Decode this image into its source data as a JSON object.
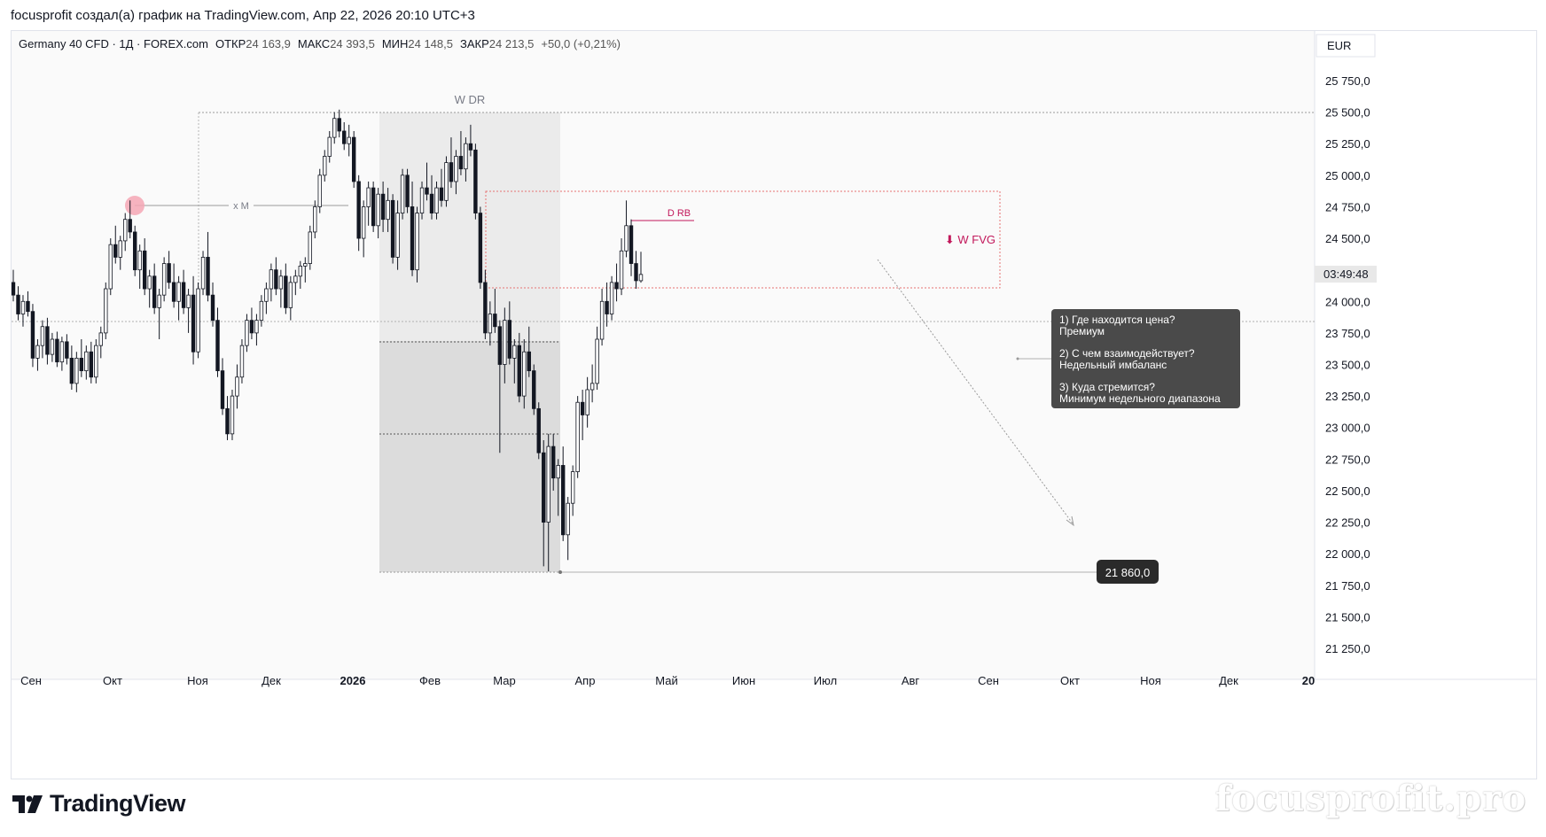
{
  "header": {
    "caption": "focusprofit создал(а) график на TradingView.com, Апр 22, 2026 20:10 UTC+3"
  },
  "legend": {
    "symbol": "Germany 40 CFD · 1Д · FOREX.com",
    "open_label": "ОТКР",
    "open_value": "24 163,9",
    "high_label": "МАКС",
    "high_value": "24 393,5",
    "low_label": "МИН",
    "low_value": "24 148,5",
    "close_label": "ЗАКР",
    "close_value": "24 213,5",
    "change": "+50,0 (+0,21%)"
  },
  "currency": "EUR",
  "countdown": "03:49:48",
  "price_marker": "21 860,0",
  "annotations": {
    "wdr": "W DR",
    "xm": "x M",
    "drb": "D RB",
    "wfvg": "⬇ W FVG"
  },
  "note": {
    "lines": [
      "1) Где находится цена?",
      "Премиум",
      "",
      "2) С чем взаимодействует?",
      "Недельный имбаланс",
      "",
      "3) Куда стремится?",
      "Минимум недельного диапазона"
    ]
  },
  "brand": "TradingView",
  "watermark": "focusprofit.pro",
  "colors": {
    "bull": "#131722",
    "bear": "#131722",
    "accent_red": "#c2185b",
    "fvg_red": "#e57373",
    "note_bg": "#4a4a4a",
    "marker_bg": "#2a2a2a"
  },
  "chart_data": {
    "type": "candlestick",
    "title": "",
    "y_axis": {
      "ticks": [
        "25 750,0",
        "25 500,0",
        "25 250,0",
        "25 000,0",
        "24 750,0",
        "24 500,0",
        "24 250,0",
        "24 000,0",
        "23 750,0",
        "23 500,0",
        "23 250,0",
        "23 000,0",
        "22 750,0",
        "22 500,0",
        "22 250,0",
        "22 000,0",
        "21 750,0",
        "21 500,0",
        "21 250,0"
      ],
      "tick_values": [
        25750,
        25500,
        25250,
        25000,
        24750,
        24500,
        24250,
        24000,
        23750,
        23500,
        23250,
        23000,
        22750,
        22500,
        22250,
        22000,
        21750,
        21500,
        21250
      ],
      "range": [
        21100,
        25950
      ]
    },
    "x_axis": {
      "labels": [
        "Сен",
        "Окт",
        "Ноя",
        "Дек",
        "2026",
        "Фев",
        "Мар",
        "Апр",
        "Май",
        "Июн",
        "Июл",
        "Авг",
        "Сен",
        "Окт",
        "Ноя",
        "Дек",
        "20"
      ],
      "bold": [
        false,
        false,
        false,
        false,
        true,
        false,
        false,
        false,
        false,
        false,
        false,
        false,
        false,
        false,
        false,
        false,
        true
      ],
      "range": [
        "2025-08-27",
        "2026-12-31"
      ]
    },
    "last_close": 24213.5,
    "levels": {
      "wdr_high": 25500,
      "wdr_low": 21860,
      "wdr_mid": 22950,
      "wdr_q": 23680,
      "current_price_line": 23830,
      "xm_level": 24700,
      "drb_level": 24630,
      "fvg_top": 24870,
      "fvg_bottom": 24100
    },
    "candles": [
      {
        "o": 24150,
        "h": 24250,
        "l": 24000,
        "c": 24050
      },
      {
        "o": 24050,
        "h": 24120,
        "l": 23850,
        "c": 23900
      },
      {
        "o": 23900,
        "h": 24050,
        "l": 23800,
        "c": 24000
      },
      {
        "o": 24000,
        "h": 24080,
        "l": 23880,
        "c": 23920
      },
      {
        "o": 23920,
        "h": 23980,
        "l": 23480,
        "c": 23550
      },
      {
        "o": 23550,
        "h": 23700,
        "l": 23450,
        "c": 23650
      },
      {
        "o": 23650,
        "h": 23850,
        "l": 23550,
        "c": 23800
      },
      {
        "o": 23800,
        "h": 23870,
        "l": 23500,
        "c": 23580
      },
      {
        "o": 23580,
        "h": 23750,
        "l": 23520,
        "c": 23700
      },
      {
        "o": 23700,
        "h": 23760,
        "l": 23480,
        "c": 23520
      },
      {
        "o": 23520,
        "h": 23720,
        "l": 23450,
        "c": 23680
      },
      {
        "o": 23680,
        "h": 23740,
        "l": 23500,
        "c": 23550
      },
      {
        "o": 23550,
        "h": 23650,
        "l": 23300,
        "c": 23350
      },
      {
        "o": 23350,
        "h": 23600,
        "l": 23280,
        "c": 23550
      },
      {
        "o": 23550,
        "h": 23700,
        "l": 23400,
        "c": 23450
      },
      {
        "o": 23450,
        "h": 23650,
        "l": 23380,
        "c": 23600
      },
      {
        "o": 23600,
        "h": 23680,
        "l": 23350,
        "c": 23400
      },
      {
        "o": 23400,
        "h": 23700,
        "l": 23350,
        "c": 23650
      },
      {
        "o": 23650,
        "h": 23800,
        "l": 23550,
        "c": 23750
      },
      {
        "o": 23750,
        "h": 24150,
        "l": 23700,
        "c": 24100
      },
      {
        "o": 24100,
        "h": 24500,
        "l": 24050,
        "c": 24450
      },
      {
        "o": 24450,
        "h": 24600,
        "l": 24300,
        "c": 24350
      },
      {
        "o": 24350,
        "h": 24520,
        "l": 24250,
        "c": 24480
      },
      {
        "o": 24480,
        "h": 24700,
        "l": 24400,
        "c": 24650
      },
      {
        "o": 24650,
        "h": 24800,
        "l": 24500,
        "c": 24550
      },
      {
        "o": 24550,
        "h": 24600,
        "l": 24200,
        "c": 24250
      },
      {
        "o": 24250,
        "h": 24450,
        "l": 24100,
        "c": 24400
      },
      {
        "o": 24400,
        "h": 24500,
        "l": 24050,
        "c": 24100
      },
      {
        "o": 24100,
        "h": 24250,
        "l": 23950,
        "c": 24200
      },
      {
        "o": 24200,
        "h": 24300,
        "l": 23900,
        "c": 23950
      },
      {
        "o": 23950,
        "h": 24100,
        "l": 23700,
        "c": 24050
      },
      {
        "o": 24050,
        "h": 24350,
        "l": 24000,
        "c": 24300
      },
      {
        "o": 24300,
        "h": 24400,
        "l": 24100,
        "c": 24150
      },
      {
        "o": 24150,
        "h": 24300,
        "l": 23950,
        "c": 24000
      },
      {
        "o": 24000,
        "h": 24200,
        "l": 23850,
        "c": 24150
      },
      {
        "o": 24150,
        "h": 24250,
        "l": 23900,
        "c": 23950
      },
      {
        "o": 23950,
        "h": 24100,
        "l": 23750,
        "c": 24050
      },
      {
        "o": 24050,
        "h": 24200,
        "l": 23500,
        "c": 23600
      },
      {
        "o": 23600,
        "h": 24150,
        "l": 23550,
        "c": 24100
      },
      {
        "o": 24100,
        "h": 24400,
        "l": 24050,
        "c": 24350
      },
      {
        "o": 24350,
        "h": 24550,
        "l": 24000,
        "c": 24050
      },
      {
        "o": 24050,
        "h": 24150,
        "l": 23800,
        "c": 23850
      },
      {
        "o": 23850,
        "h": 23950,
        "l": 23400,
        "c": 23450
      },
      {
        "o": 23450,
        "h": 23550,
        "l": 23100,
        "c": 23150
      },
      {
        "o": 23150,
        "h": 23250,
        "l": 22900,
        "c": 22950
      },
      {
        "o": 22950,
        "h": 23300,
        "l": 22900,
        "c": 23250
      },
      {
        "o": 23250,
        "h": 23500,
        "l": 23150,
        "c": 23400
      },
      {
        "o": 23400,
        "h": 23700,
        "l": 23350,
        "c": 23650
      },
      {
        "o": 23650,
        "h": 23900,
        "l": 23600,
        "c": 23850
      },
      {
        "o": 23850,
        "h": 23950,
        "l": 23700,
        "c": 23750
      },
      {
        "o": 23750,
        "h": 23900,
        "l": 23650,
        "c": 23850
      },
      {
        "o": 23850,
        "h": 24050,
        "l": 23800,
        "c": 24000
      },
      {
        "o": 24000,
        "h": 24150,
        "l": 23900,
        "c": 24100
      },
      {
        "o": 24100,
        "h": 24300,
        "l": 24000,
        "c": 24250
      },
      {
        "o": 24250,
        "h": 24350,
        "l": 24050,
        "c": 24100
      },
      {
        "o": 24100,
        "h": 24250,
        "l": 23950,
        "c": 24200
      },
      {
        "o": 24200,
        "h": 24300,
        "l": 23900,
        "c": 23950
      },
      {
        "o": 23950,
        "h": 24200,
        "l": 23850,
        "c": 24150
      },
      {
        "o": 24150,
        "h": 24250,
        "l": 24050,
        "c": 24200
      },
      {
        "o": 24200,
        "h": 24320,
        "l": 24100,
        "c": 24280
      },
      {
        "o": 24280,
        "h": 24350,
        "l": 24150,
        "c": 24300
      },
      {
        "o": 24300,
        "h": 24600,
        "l": 24250,
        "c": 24550
      },
      {
        "o": 24550,
        "h": 24800,
        "l": 24500,
        "c": 24750
      },
      {
        "o": 24750,
        "h": 25050,
        "l": 24700,
        "c": 25000
      },
      {
        "o": 25000,
        "h": 25200,
        "l": 24950,
        "c": 25150
      },
      {
        "o": 25150,
        "h": 25350,
        "l": 25100,
        "c": 25300
      },
      {
        "o": 25300,
        "h": 25500,
        "l": 25250,
        "c": 25450
      },
      {
        "o": 25450,
        "h": 25520,
        "l": 25300,
        "c": 25350
      },
      {
        "o": 25350,
        "h": 25420,
        "l": 25200,
        "c": 25250
      },
      {
        "o": 25250,
        "h": 25400,
        "l": 25150,
        "c": 25300
      },
      {
        "o": 25300,
        "h": 25350,
        "l": 24900,
        "c": 24950
      },
      {
        "o": 24950,
        "h": 25000,
        "l": 24400,
        "c": 24500
      },
      {
        "o": 24500,
        "h": 24800,
        "l": 24350,
        "c": 24750
      },
      {
        "o": 24750,
        "h": 24950,
        "l": 24600,
        "c": 24900
      },
      {
        "o": 24900,
        "h": 24950,
        "l": 24550,
        "c": 24600
      },
      {
        "o": 24600,
        "h": 24900,
        "l": 24500,
        "c": 24850
      },
      {
        "o": 24850,
        "h": 24950,
        "l": 24550,
        "c": 24650
      },
      {
        "o": 24650,
        "h": 24900,
        "l": 24550,
        "c": 24800
      },
      {
        "o": 24800,
        "h": 24850,
        "l": 24300,
        "c": 24350
      },
      {
        "o": 24350,
        "h": 24800,
        "l": 24250,
        "c": 24700
      },
      {
        "o": 24700,
        "h": 25050,
        "l": 24650,
        "c": 25000
      },
      {
        "o": 25000,
        "h": 25050,
        "l": 24700,
        "c": 24750
      },
      {
        "o": 24750,
        "h": 24950,
        "l": 24200,
        "c": 24250
      },
      {
        "o": 24250,
        "h": 24750,
        "l": 24150,
        "c": 24700
      },
      {
        "o": 24700,
        "h": 24950,
        "l": 24650,
        "c": 24900
      },
      {
        "o": 24900,
        "h": 25100,
        "l": 24800,
        "c": 24850
      },
      {
        "o": 24850,
        "h": 25000,
        "l": 24650,
        "c": 24700
      },
      {
        "o": 24700,
        "h": 24950,
        "l": 24650,
        "c": 24900
      },
      {
        "o": 24900,
        "h": 25050,
        "l": 24750,
        "c": 24800
      },
      {
        "o": 24800,
        "h": 25150,
        "l": 24750,
        "c": 25100
      },
      {
        "o": 25100,
        "h": 25300,
        "l": 24900,
        "c": 24950
      },
      {
        "o": 24950,
        "h": 25200,
        "l": 24850,
        "c": 25150
      },
      {
        "o": 25150,
        "h": 25350,
        "l": 25000,
        "c": 25050
      },
      {
        "o": 25050,
        "h": 25300,
        "l": 24950,
        "c": 25250
      },
      {
        "o": 25250,
        "h": 25400,
        "l": 25150,
        "c": 25200
      },
      {
        "o": 25200,
        "h": 25250,
        "l": 24650,
        "c": 24700
      },
      {
        "o": 24700,
        "h": 24750,
        "l": 24100,
        "c": 24150
      },
      {
        "o": 24150,
        "h": 24250,
        "l": 23700,
        "c": 23750
      },
      {
        "o": 23750,
        "h": 24000,
        "l": 23650,
        "c": 23900
      },
      {
        "o": 23900,
        "h": 24100,
        "l": 23750,
        "c": 23800
      },
      {
        "o": 23800,
        "h": 23850,
        "l": 22800,
        "c": 23500
      },
      {
        "o": 23500,
        "h": 23950,
        "l": 23350,
        "c": 23850
      },
      {
        "o": 23850,
        "h": 24000,
        "l": 23500,
        "c": 23550
      },
      {
        "o": 23550,
        "h": 23700,
        "l": 23350,
        "c": 23650
      },
      {
        "o": 23650,
        "h": 23750,
        "l": 23200,
        "c": 23250
      },
      {
        "o": 23250,
        "h": 23700,
        "l": 23150,
        "c": 23600
      },
      {
        "o": 23600,
        "h": 23800,
        "l": 23400,
        "c": 23450
      },
      {
        "o": 23450,
        "h": 23500,
        "l": 23100,
        "c": 23150
      },
      {
        "o": 23150,
        "h": 23200,
        "l": 22750,
        "c": 22800
      },
      {
        "o": 22800,
        "h": 22900,
        "l": 21900,
        "c": 22250
      },
      {
        "o": 22250,
        "h": 22950,
        "l": 21860,
        "c": 22850
      },
      {
        "o": 22850,
        "h": 22950,
        "l": 22500,
        "c": 22600
      },
      {
        "o": 22600,
        "h": 22750,
        "l": 22300,
        "c": 22700
      },
      {
        "o": 22700,
        "h": 22850,
        "l": 22100,
        "c": 22150
      },
      {
        "o": 22150,
        "h": 22450,
        "l": 21950,
        "c": 22400
      },
      {
        "o": 22400,
        "h": 22700,
        "l": 22300,
        "c": 22650
      },
      {
        "o": 22650,
        "h": 23250,
        "l": 22600,
        "c": 23200
      },
      {
        "o": 23200,
        "h": 23300,
        "l": 22900,
        "c": 23100
      },
      {
        "o": 23100,
        "h": 23400,
        "l": 23000,
        "c": 23300
      },
      {
        "o": 23300,
        "h": 23500,
        "l": 23200,
        "c": 23350
      },
      {
        "o": 23350,
        "h": 23800,
        "l": 23300,
        "c": 23700
      },
      {
        "o": 23700,
        "h": 24100,
        "l": 23650,
        "c": 24000
      },
      {
        "o": 24000,
        "h": 24150,
        "l": 23800,
        "c": 23900
      },
      {
        "o": 23900,
        "h": 24200,
        "l": 23850,
        "c": 24150
      },
      {
        "o": 24150,
        "h": 24300,
        "l": 24000,
        "c": 24100
      },
      {
        "o": 24100,
        "h": 24500,
        "l": 24050,
        "c": 24400
      },
      {
        "o": 24400,
        "h": 24800,
        "l": 24350,
        "c": 24600
      },
      {
        "o": 24600,
        "h": 24650,
        "l": 24200,
        "c": 24300
      },
      {
        "o": 24300,
        "h": 24400,
        "l": 24100,
        "c": 24163.9
      },
      {
        "o": 24163.9,
        "h": 24393.5,
        "l": 24148.5,
        "c": 24213.5
      }
    ]
  }
}
